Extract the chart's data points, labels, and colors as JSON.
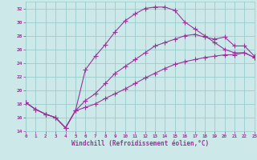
{
  "background_color": "#cce8e8",
  "grid_color": "#99cccc",
  "line_color": "#993399",
  "marker": "+",
  "xlabel": "Windchill (Refroidissement éolien,°C)",
  "xlabel_color": "#993399",
  "tick_color": "#993399",
  "xlim": [
    0,
    23
  ],
  "ylim": [
    14,
    33
  ],
  "yticks": [
    14,
    16,
    18,
    20,
    22,
    24,
    26,
    28,
    30,
    32
  ],
  "xticks": [
    0,
    1,
    2,
    3,
    4,
    5,
    6,
    7,
    8,
    9,
    10,
    11,
    12,
    13,
    14,
    15,
    16,
    17,
    18,
    19,
    20,
    21,
    22,
    23
  ],
  "curve_upper_x": [
    0,
    1,
    2,
    3,
    4,
    5,
    6,
    7,
    8,
    9,
    10,
    11,
    12,
    13,
    14,
    15,
    16,
    17,
    18,
    19,
    20,
    21,
    22,
    23
  ],
  "curve_upper_y": [
    18.2,
    17.2,
    16.5,
    16.0,
    14.5,
    17.0,
    23.0,
    25.0,
    26.7,
    28.6,
    30.2,
    31.2,
    32.0,
    32.2,
    32.2,
    31.7,
    30.0,
    29.0,
    28.0,
    27.0,
    26.0,
    25.5,
    25.5,
    24.8
  ],
  "curve_mid_x": [
    0,
    1,
    2,
    3,
    4,
    5,
    6,
    7,
    8,
    9,
    10,
    11,
    12,
    13,
    14,
    15,
    16,
    17,
    18,
    19,
    20,
    21,
    22,
    23
  ],
  "curve_mid_y": [
    18.2,
    17.2,
    16.5,
    16.0,
    14.5,
    17.0,
    18.5,
    19.5,
    21.0,
    22.5,
    23.5,
    24.5,
    25.5,
    26.5,
    27.0,
    27.5,
    28.0,
    28.2,
    27.8,
    27.5,
    27.8,
    26.5,
    26.5,
    25.0
  ],
  "curve_lower_x": [
    0,
    1,
    2,
    3,
    4,
    5,
    6,
    7,
    8,
    9,
    10,
    11,
    12,
    13,
    14,
    15,
    16,
    17,
    18,
    19,
    20,
    21,
    22,
    23
  ],
  "curve_lower_y": [
    18.2,
    17.2,
    16.5,
    16.0,
    14.5,
    17.0,
    17.5,
    18.0,
    18.8,
    19.5,
    20.2,
    21.0,
    21.8,
    22.5,
    23.2,
    23.8,
    24.2,
    24.5,
    24.8,
    25.0,
    25.2,
    25.2,
    25.5,
    24.8
  ]
}
